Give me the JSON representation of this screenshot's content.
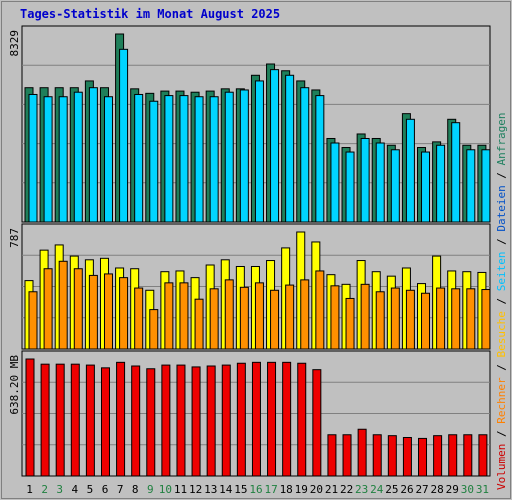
{
  "chart_data": [
    {
      "type": "bar",
      "panel": "top",
      "title": "Tages-Statistik im Monat August 2025",
      "max_label": "8329",
      "ylim": [
        0,
        8329
      ],
      "categories": [
        "1",
        "2",
        "3",
        "4",
        "5",
        "6",
        "7",
        "8",
        "9",
        "10",
        "11",
        "12",
        "13",
        "14",
        "15",
        "16",
        "17",
        "18",
        "19",
        "20",
        "21",
        "22",
        "23",
        "24",
        "25",
        "26",
        "27",
        "28",
        "29",
        "30",
        "31"
      ],
      "series": [
        {
          "name": "Anfragen",
          "values": [
            5950,
            5950,
            5950,
            5950,
            6250,
            5950,
            8329,
            5900,
            5700,
            5800,
            5800,
            5750,
            5800,
            5900,
            5900,
            6500,
            7000,
            6700,
            6250,
            5850,
            3700,
            3300,
            3900,
            3700,
            3400,
            4800,
            3300,
            3550,
            4550,
            3400,
            3400
          ]
        },
        {
          "name": "Dateien",
          "values": [
            5650,
            5550,
            5550,
            5750,
            5950,
            5550,
            7650,
            5650,
            5350,
            5600,
            5600,
            5550,
            5550,
            5750,
            5850,
            6250,
            6750,
            6500,
            5950,
            5600,
            3500,
            3100,
            3700,
            3500,
            3200,
            4550,
            3100,
            3400,
            4400,
            3200,
            3200
          ]
        }
      ]
    },
    {
      "type": "bar",
      "panel": "middle",
      "max_label": "787",
      "ylim": [
        0,
        787
      ],
      "categories": [
        "1",
        "2",
        "3",
        "4",
        "5",
        "6",
        "7",
        "8",
        "9",
        "10",
        "11",
        "12",
        "13",
        "14",
        "15",
        "16",
        "17",
        "18",
        "19",
        "20",
        "21",
        "22",
        "23",
        "24",
        "25",
        "26",
        "27",
        "28",
        "29",
        "30",
        "31"
      ],
      "series": [
        {
          "name": "Seiten",
          "values": [
            460,
            665,
            700,
            625,
            600,
            610,
            545,
            540,
            395,
            520,
            525,
            480,
            565,
            600,
            555,
            555,
            595,
            680,
            787,
            720,
            500,
            435,
            595,
            520,
            490,
            545,
            440,
            625,
            525,
            520,
            515
          ]
        },
        {
          "name": "Besuche",
          "values": [
            385,
            540,
            590,
            540,
            495,
            505,
            480,
            410,
            265,
            445,
            445,
            335,
            405,
            465,
            415,
            445,
            395,
            430,
            465,
            525,
            425,
            340,
            435,
            385,
            410,
            395,
            375,
            410,
            405,
            405,
            400
          ]
        }
      ]
    },
    {
      "type": "bar",
      "panel": "bottom",
      "max_label": "638.20 MB",
      "ylim": [
        0,
        638.2
      ],
      "categories": [
        "1",
        "2",
        "3",
        "4",
        "5",
        "6",
        "7",
        "8",
        "9",
        "10",
        "11",
        "12",
        "13",
        "14",
        "15",
        "16",
        "17",
        "18",
        "19",
        "20",
        "21",
        "22",
        "23",
        "24",
        "25",
        "26",
        "27",
        "28",
        "29",
        "30",
        "31"
      ],
      "series": [
        {
          "name": "Volumen",
          "values": [
            638.2,
            610,
            610,
            610,
            605,
            590,
            620,
            600,
            585,
            605,
            605,
            595,
            600,
            605,
            615,
            620,
            620,
            620,
            615,
            580,
            225,
            225,
            255,
            225,
            220,
            210,
            205,
            220,
            225,
            225,
            225
          ]
        }
      ]
    }
  ],
  "legend": {
    "items": [
      {
        "label": "Volumen",
        "color": "#cc0000"
      },
      {
        "label": "Rechner",
        "color": "#ff8000"
      },
      {
        "label": "Besuche",
        "color": "#ffc000"
      },
      {
        "label": "Seiten",
        "color": "#00c0ff"
      },
      {
        "label": "Dateien",
        "color": "#0050c8"
      },
      {
        "label": "Anfragen",
        "color": "#208060"
      }
    ],
    "separator": " / "
  },
  "x_weekend_days": [
    "2",
    "3",
    "9",
    "10",
    "16",
    "17",
    "23",
    "24",
    "30",
    "31"
  ],
  "colors": {
    "background": "#c0c0c0",
    "title": "#0000cc",
    "anfragen": "#1f7f5a",
    "dateien": "#00d4ff",
    "seiten": "#ffff00",
    "besuche": "#ff9000",
    "volumen": "#ee0000",
    "weekday_tick": "#000000",
    "weekend_tick": "#208040"
  }
}
